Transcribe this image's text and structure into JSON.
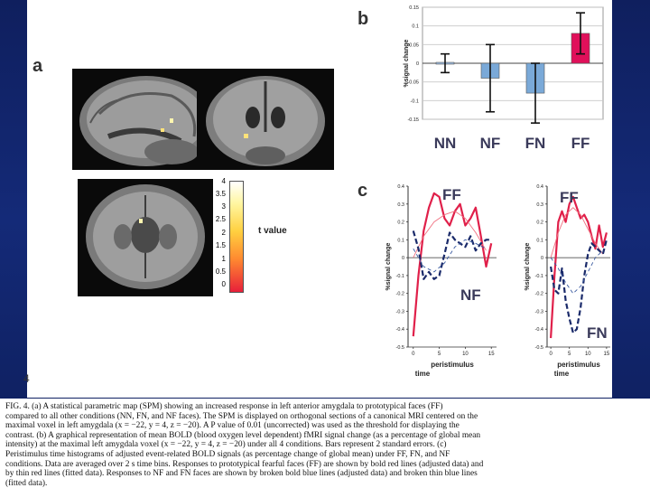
{
  "panels": {
    "a": "a",
    "b": "b",
    "c": "c"
  },
  "colorbar": {
    "ticks": [
      "4",
      "3.5",
      "3",
      "2.5",
      "2",
      "1.5",
      "1",
      "0.5",
      "0"
    ],
    "label": "t value"
  },
  "chart_data": [
    {
      "type": "bar",
      "categories": [
        "NN",
        "NF",
        "FN",
        "FF"
      ],
      "values": [
        0.0,
        -0.04,
        -0.08,
        0.08
      ],
      "errors": [
        0.025,
        0.09,
        0.08,
        0.055
      ],
      "ylabel": "%signal change",
      "ylim": [
        -0.15,
        0.15
      ],
      "yticks": [
        "0.15",
        "0.1",
        "0.05",
        "0",
        "-0.05",
        "-0.1",
        "-0.15"
      ],
      "colors": {
        "NN": "#9bbbe0",
        "NF": "#7aa9d8",
        "FN": "#7aa9d8",
        "FF": "#e0105a"
      }
    },
    {
      "type": "line",
      "ylabel": "%signal change",
      "xlabel": "peristimulus time",
      "ylim": [
        -0.5,
        0.4
      ],
      "yticks": [
        "0.4",
        "0.3",
        "0.2",
        "0.1",
        "0",
        "-0.1",
        "-0.2",
        "-0.3",
        "-0.4",
        "-0.5"
      ],
      "xticks": [
        "0",
        "5",
        "10",
        "15"
      ],
      "labels": [
        "FF",
        "NF"
      ],
      "series": [
        {
          "name": "FF adjusted",
          "x": [
            0,
            1,
            2,
            3,
            4,
            5,
            6,
            7,
            8,
            9,
            10,
            11,
            12,
            13,
            14,
            15
          ],
          "values": [
            -0.44,
            -0.1,
            0.15,
            0.28,
            0.36,
            0.34,
            0.22,
            0.18,
            0.26,
            0.3,
            0.18,
            0.22,
            0.28,
            0.12,
            -0.05,
            0.08
          ]
        },
        {
          "name": "FF fitted",
          "x": [
            0,
            2,
            4,
            6,
            8,
            10,
            12,
            14
          ],
          "values": [
            0.0,
            0.12,
            0.2,
            0.24,
            0.26,
            0.22,
            0.14,
            0.04
          ]
        },
        {
          "name": "NF adjusted",
          "x": [
            0,
            1,
            2,
            3,
            4,
            5,
            6,
            7,
            8,
            9,
            10,
            11,
            12,
            13,
            14,
            15
          ],
          "values": [
            0.15,
            0.05,
            -0.12,
            -0.08,
            -0.12,
            -0.1,
            0.02,
            0.14,
            0.1,
            0.08,
            0.06,
            0.12,
            0.04,
            0.08,
            0.1,
            0.1
          ]
        },
        {
          "name": "NF fitted",
          "x": [
            0,
            2,
            4,
            6,
            8,
            10,
            12,
            14
          ],
          "values": [
            0.05,
            -0.05,
            -0.08,
            -0.03,
            0.06,
            0.1,
            0.08,
            0.05
          ]
        }
      ]
    },
    {
      "type": "line",
      "ylabel": "%signal change",
      "xlabel": "peristimulus time",
      "ylim": [
        -0.5,
        0.4
      ],
      "yticks": [
        "0.4",
        "0.3",
        "0.2",
        "0.1",
        "0",
        "-0.1",
        "-0.2",
        "-0.3",
        "-0.4",
        "-0.5"
      ],
      "xticks": [
        "0",
        "5",
        "10",
        "15"
      ],
      "labels": [
        "FF",
        "FN"
      ],
      "series": [
        {
          "name": "FF adjusted",
          "x": [
            0,
            1,
            2,
            3,
            4,
            5,
            6,
            7,
            8,
            9,
            10,
            11,
            12,
            13,
            14,
            15
          ],
          "values": [
            -0.45,
            -0.1,
            0.2,
            0.26,
            0.2,
            0.3,
            0.34,
            0.28,
            0.22,
            0.24,
            0.2,
            0.12,
            0.05,
            0.18,
            0.06,
            0.14
          ]
        },
        {
          "name": "FF fitted",
          "x": [
            0,
            2,
            4,
            6,
            8,
            10,
            12,
            14
          ],
          "values": [
            0.0,
            0.14,
            0.24,
            0.28,
            0.24,
            0.16,
            0.08,
            0.02
          ]
        },
        {
          "name": "FN adjusted",
          "x": [
            0,
            1,
            2,
            3,
            4,
            5,
            6,
            7,
            8,
            9,
            10,
            11,
            12,
            13,
            14,
            15
          ],
          "values": [
            -0.05,
            -0.18,
            -0.2,
            -0.06,
            -0.24,
            -0.34,
            -0.42,
            -0.4,
            -0.28,
            -0.1,
            0.02,
            0.08,
            0.06,
            0.04,
            0.02,
            0.1
          ]
        },
        {
          "name": "FN fitted",
          "x": [
            0,
            2,
            4,
            6,
            8,
            10,
            12,
            14
          ],
          "values": [
            0.0,
            -0.06,
            -0.14,
            -0.2,
            -0.16,
            -0.08,
            0.0,
            0.04
          ]
        }
      ]
    }
  ],
  "caption": {
    "lines": [
      "FIG. 4.  (a) A statistical parametric map (SPM) showing an increased response in left anterior amygdala to prototypical faces (FF)",
      "compared to all other conditions (NN, FN, and NF faces). The SPM is displayed on orthogonal sections of a canonical MRI centered on the",
      "maximal voxel in left amygdala (x = −22, y = 4, z = −20). A P value of 0.01 (uncorrected) was used as the threshold for displaying the",
      "contrast. (b) A graphical representation of mean BOLD (blood oxygen level dependent) fMRI signal change (as a percentage of global mean",
      "intensity) at the maximal left amygdala voxel (x = −22, y = 4, z = −20) under all 4 conditions. Bars represent 2 standard errors. (c)",
      "Peristimulus time histograms of adjusted event-related BOLD signals (as percentage change of global mean) under FF, FN, and NF",
      "conditions. Data are averaged over 2 s time bins. Responses to prototypical fearful faces (FF) are shown by bold red lines (adjusted data) and",
      "by thin red lines (fitted data). Responses to NF and FN faces are shown by broken bold blue lines (adjusted data) and broken thin blue lines",
      "(fitted data)."
    ]
  },
  "page_number": "4"
}
